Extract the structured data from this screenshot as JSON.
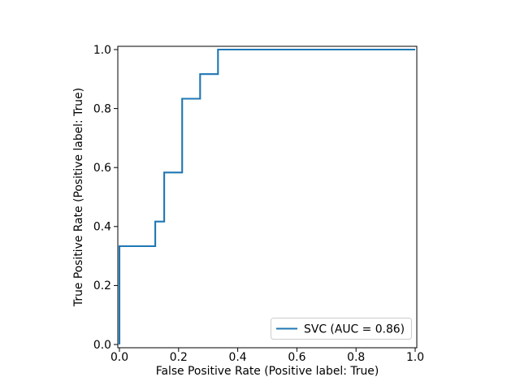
{
  "figure": {
    "background": "#ffffff",
    "text_color": "#000000",
    "line_color": "#1f77b4",
    "legend": {
      "label": "SVC (AUC = 0.86)",
      "border_color": "#cccccc",
      "background": "#ffffff",
      "position": "lower right"
    }
  },
  "chart_data": {
    "type": "line",
    "subtype": "roc-step-curve",
    "title": "",
    "xlabel": "False Positive Rate (Positive label: True)",
    "ylabel": "True Positive Rate (Positive label: True)",
    "xlim": [
      0.0,
      1.0
    ],
    "ylim": [
      0.0,
      1.0
    ],
    "xticks": [
      "0.0",
      "0.2",
      "0.4",
      "0.6",
      "0.8",
      "1.0"
    ],
    "yticks": [
      "0.0",
      "0.2",
      "0.4",
      "0.6",
      "0.8",
      "1.0"
    ],
    "grid": false,
    "legend_position": "lower right",
    "series": [
      {
        "name": "SVC (AUC = 0.86)",
        "estimator": "SVC",
        "auc": 0.86,
        "color": "#1f77b4",
        "fpr": [
          0.0,
          0.0,
          0.1212,
          0.1212,
          0.1515,
          0.1515,
          0.2121,
          0.2121,
          0.2727,
          0.2727,
          0.3333,
          0.3333,
          1.0
        ],
        "tpr": [
          0.0,
          0.3333,
          0.3333,
          0.4167,
          0.4167,
          0.5833,
          0.5833,
          0.8333,
          0.8333,
          0.9167,
          0.9167,
          1.0,
          1.0
        ]
      }
    ]
  }
}
